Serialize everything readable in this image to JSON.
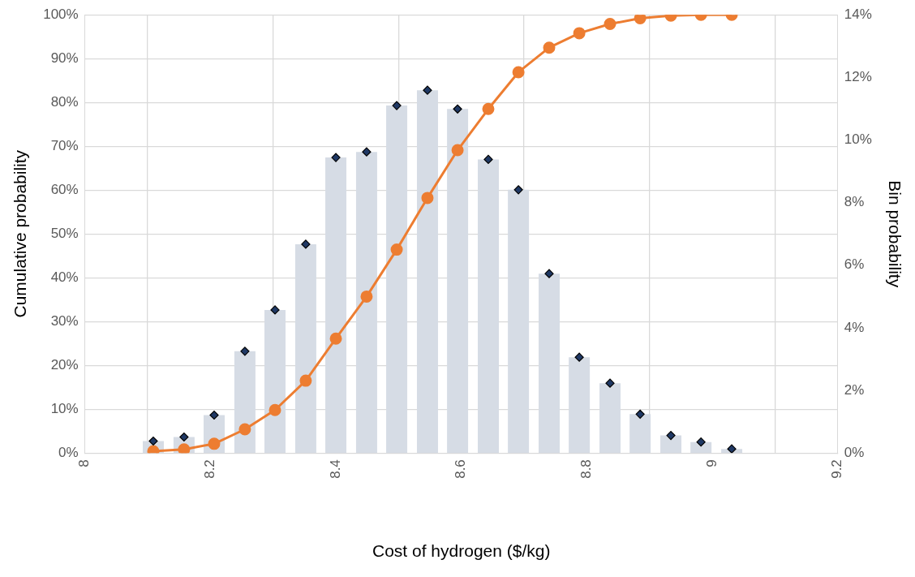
{
  "chart_data": {
    "type": "bar",
    "xlabel": "Cost of hydrogen ($/kg)",
    "ylabel": "Cumulative probability",
    "y2label": "Bin probability",
    "x": [
      8.109,
      8.158,
      8.206,
      8.255,
      8.303,
      8.352,
      8.4,
      8.449,
      8.497,
      8.546,
      8.594,
      8.643,
      8.691,
      8.74,
      8.788,
      8.837,
      8.885,
      8.934,
      8.982,
      9.031
    ],
    "series": [
      {
        "axis": "y2",
        "color": "#d6dce5",
        "values": [
          0.38,
          0.51,
          1.21,
          3.25,
          4.57,
          6.67,
          9.44,
          9.62,
          11.1,
          11.59,
          10.99,
          9.38,
          8.41,
          5.73,
          3.06,
          2.23,
          1.24,
          0.56,
          0.35,
          0.13
        ]
      },
      {
        "type": "scatter",
        "axis": "y2",
        "marker": "diamond",
        "color": "#1f3864",
        "values": [
          0.38,
          0.51,
          1.21,
          3.25,
          4.57,
          6.67,
          9.44,
          9.62,
          11.1,
          11.59,
          10.99,
          9.38,
          8.41,
          5.73,
          3.06,
          2.23,
          1.24,
          0.56,
          0.35,
          0.13
        ]
      },
      {
        "type": "line",
        "marker": "circle",
        "color": "#ed7d31",
        "values": [
          0.4,
          0.8,
          2.1,
          5.4,
          9.8,
          16.5,
          26.1,
          35.7,
          46.4,
          58.2,
          69.1,
          78.5,
          86.9,
          92.5,
          95.8,
          97.9,
          99.2,
          99.8,
          100,
          100
        ]
      }
    ],
    "xlim": [
      8,
      9.2
    ],
    "xticks": [
      8,
      8.2,
      8.4,
      8.6,
      8.8,
      9,
      9.2
    ],
    "ylim": [
      0,
      100
    ],
    "yticks": [
      {
        "value": 0,
        "label": "0%"
      },
      {
        "value": 10,
        "label": "10%"
      },
      {
        "value": 20,
        "label": "20%"
      },
      {
        "value": 30,
        "label": "30%"
      },
      {
        "value": 40,
        "label": "40%"
      },
      {
        "value": 50,
        "label": "50%"
      },
      {
        "value": 60,
        "label": "60%"
      },
      {
        "value": 70,
        "label": "70%"
      },
      {
        "value": 80,
        "label": "80%"
      },
      {
        "value": 90,
        "label": "90%"
      },
      {
        "value": 100,
        "label": "100%"
      }
    ],
    "y2lim": [
      0,
      14
    ],
    "y2ticks": [
      {
        "value": 0,
        "label": "0%"
      },
      {
        "value": 2,
        "label": "2%"
      },
      {
        "value": 4,
        "label": "4%"
      },
      {
        "value": 6,
        "label": "6%"
      },
      {
        "value": 8,
        "label": "8%"
      },
      {
        "value": 10,
        "label": "10%"
      },
      {
        "value": 12,
        "label": "12%"
      },
      {
        "value": 14,
        "label": "14%"
      }
    ],
    "grid": true,
    "legend": false
  }
}
